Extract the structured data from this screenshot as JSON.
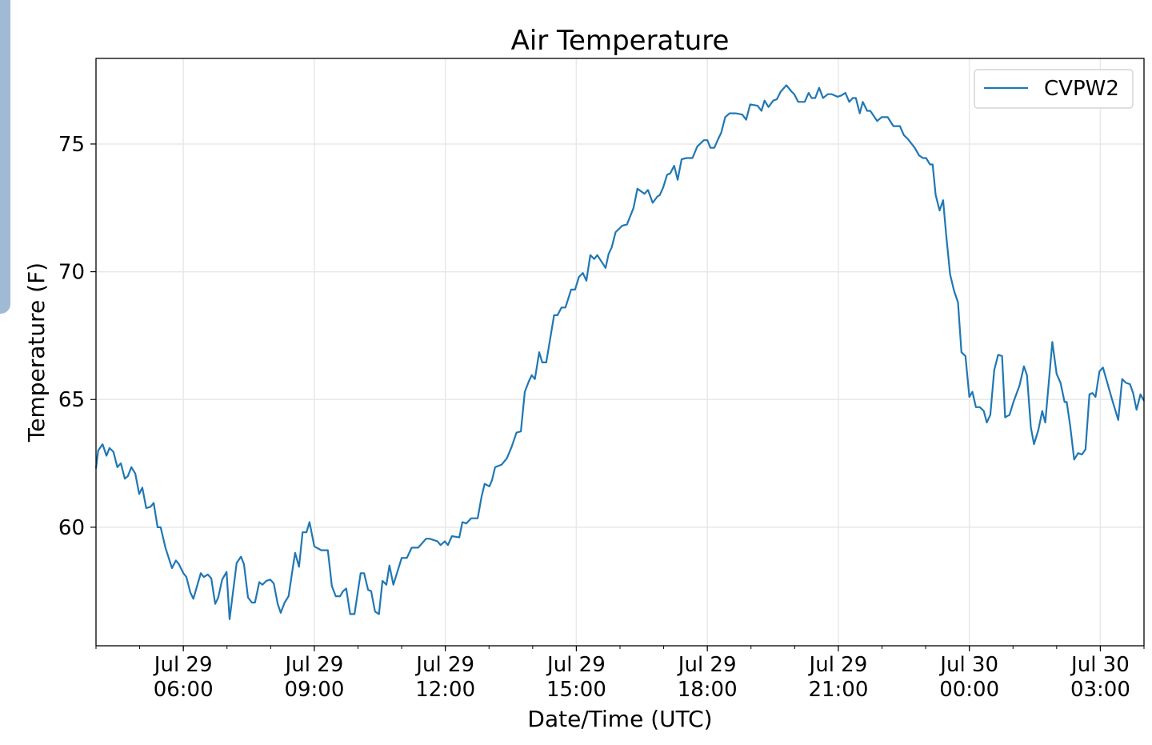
{
  "chart_data": {
    "type": "line",
    "title": "Air Temperature",
    "xlabel": "Date/Time (UTC)",
    "ylabel": "Temperature (F)",
    "x_units": "hours since Jul 29 00:00 UTC",
    "xlim": [
      4,
      28
    ],
    "ylim": [
      55.36,
      78.35
    ],
    "grid": true,
    "legend_position": "top-right",
    "yticks": [
      60,
      65,
      70,
      75
    ],
    "xticks": [
      {
        "value": 6,
        "date": "Jul 29",
        "time": "06:00"
      },
      {
        "value": 9,
        "date": "Jul 29",
        "time": "09:00"
      },
      {
        "value": 12,
        "date": "Jul 29",
        "time": "12:00"
      },
      {
        "value": 15,
        "date": "Jul 29",
        "time": "15:00"
      },
      {
        "value": 18,
        "date": "Jul 29",
        "time": "18:00"
      },
      {
        "value": 21,
        "date": "Jul 29",
        "time": "21:00"
      },
      {
        "value": 24,
        "date": "Jul 30",
        "time": "00:00"
      },
      {
        "value": 27,
        "date": "Jul 30",
        "time": "03:00"
      }
    ],
    "series": [
      {
        "name": "CVPW2",
        "color": "#1f77b4",
        "points": [
          [
            4.0,
            62.3
          ],
          [
            4.05,
            63.0
          ],
          [
            4.15,
            63.25
          ],
          [
            4.24,
            62.8
          ],
          [
            4.31,
            63.1
          ],
          [
            4.4,
            62.95
          ],
          [
            4.49,
            62.35
          ],
          [
            4.57,
            62.5
          ],
          [
            4.66,
            61.9
          ],
          [
            4.73,
            62.0
          ],
          [
            4.81,
            62.35
          ],
          [
            4.9,
            62.1
          ],
          [
            4.99,
            61.3
          ],
          [
            5.06,
            61.55
          ],
          [
            5.15,
            60.75
          ],
          [
            5.25,
            60.8
          ],
          [
            5.32,
            60.95
          ],
          [
            5.41,
            60.0
          ],
          [
            5.48,
            60.0
          ],
          [
            5.59,
            59.2
          ],
          [
            5.74,
            58.4
          ],
          [
            5.83,
            58.7
          ],
          [
            5.9,
            58.55
          ],
          [
            6.0,
            58.2
          ],
          [
            6.07,
            58.05
          ],
          [
            6.16,
            57.45
          ],
          [
            6.23,
            57.2
          ],
          [
            6.4,
            58.2
          ],
          [
            6.47,
            58.05
          ],
          [
            6.56,
            58.15
          ],
          [
            6.64,
            58.0
          ],
          [
            6.73,
            57.0
          ],
          [
            6.8,
            57.25
          ],
          [
            6.89,
            57.95
          ],
          [
            6.99,
            58.25
          ],
          [
            7.06,
            56.4
          ],
          [
            7.22,
            58.6
          ],
          [
            7.32,
            58.85
          ],
          [
            7.39,
            58.55
          ],
          [
            7.48,
            57.25
          ],
          [
            7.57,
            57.05
          ],
          [
            7.64,
            57.05
          ],
          [
            7.74,
            57.85
          ],
          [
            7.81,
            57.75
          ],
          [
            7.9,
            57.9
          ],
          [
            7.99,
            57.95
          ],
          [
            8.07,
            57.8
          ],
          [
            8.16,
            57.0
          ],
          [
            8.23,
            56.65
          ],
          [
            8.32,
            57.05
          ],
          [
            8.41,
            57.3
          ],
          [
            8.51,
            58.45
          ],
          [
            8.56,
            59.0
          ],
          [
            8.65,
            58.45
          ],
          [
            8.73,
            59.8
          ],
          [
            8.82,
            59.8
          ],
          [
            8.89,
            60.2
          ],
          [
            9.0,
            59.25
          ],
          [
            9.16,
            59.1
          ],
          [
            9.31,
            59.1
          ],
          [
            9.4,
            57.7
          ],
          [
            9.49,
            57.3
          ],
          [
            9.59,
            57.3
          ],
          [
            9.66,
            57.5
          ],
          [
            9.73,
            57.6
          ],
          [
            9.82,
            56.6
          ],
          [
            9.92,
            56.6
          ],
          [
            10.06,
            58.2
          ],
          [
            10.14,
            58.2
          ],
          [
            10.23,
            57.55
          ],
          [
            10.3,
            57.5
          ],
          [
            10.39,
            56.7
          ],
          [
            10.48,
            56.6
          ],
          [
            10.56,
            57.9
          ],
          [
            10.65,
            57.75
          ],
          [
            10.72,
            58.5
          ],
          [
            10.81,
            57.75
          ],
          [
            11.0,
            58.8
          ],
          [
            11.12,
            58.8
          ],
          [
            11.23,
            59.2
          ],
          [
            11.38,
            59.2
          ],
          [
            11.56,
            59.55
          ],
          [
            11.64,
            59.55
          ],
          [
            11.82,
            59.45
          ],
          [
            11.89,
            59.3
          ],
          [
            11.99,
            59.45
          ],
          [
            12.06,
            59.3
          ],
          [
            12.15,
            59.65
          ],
          [
            12.32,
            59.6
          ],
          [
            12.39,
            60.2
          ],
          [
            12.48,
            60.15
          ],
          [
            12.59,
            60.35
          ],
          [
            12.74,
            60.35
          ],
          [
            12.83,
            61.2
          ],
          [
            12.9,
            61.7
          ],
          [
            13.01,
            61.6
          ],
          [
            13.07,
            61.85
          ],
          [
            13.14,
            62.35
          ],
          [
            13.29,
            62.45
          ],
          [
            13.41,
            62.7
          ],
          [
            13.52,
            63.15
          ],
          [
            13.63,
            63.7
          ],
          [
            13.73,
            63.75
          ],
          [
            13.82,
            65.3
          ],
          [
            13.91,
            65.7
          ],
          [
            13.98,
            65.95
          ],
          [
            14.05,
            65.8
          ],
          [
            14.15,
            66.85
          ],
          [
            14.22,
            66.45
          ],
          [
            14.31,
            66.45
          ],
          [
            14.49,
            68.3
          ],
          [
            14.57,
            68.3
          ],
          [
            14.66,
            68.6
          ],
          [
            14.75,
            68.6
          ],
          [
            14.88,
            69.3
          ],
          [
            14.97,
            69.3
          ],
          [
            15.06,
            69.8
          ],
          [
            15.15,
            69.95
          ],
          [
            15.23,
            69.65
          ],
          [
            15.32,
            70.65
          ],
          [
            15.41,
            70.5
          ],
          [
            15.48,
            70.65
          ],
          [
            15.67,
            70.15
          ],
          [
            15.74,
            70.7
          ],
          [
            15.81,
            70.95
          ],
          [
            15.9,
            71.55
          ],
          [
            16.05,
            71.8
          ],
          [
            16.16,
            71.85
          ],
          [
            16.31,
            72.5
          ],
          [
            16.4,
            73.25
          ],
          [
            16.56,
            73.05
          ],
          [
            16.64,
            73.2
          ],
          [
            16.75,
            72.7
          ],
          [
            16.86,
            72.95
          ],
          [
            16.91,
            73.0
          ],
          [
            16.99,
            73.3
          ],
          [
            17.08,
            73.8
          ],
          [
            17.15,
            73.85
          ],
          [
            17.24,
            74.15
          ],
          [
            17.32,
            73.6
          ],
          [
            17.41,
            74.4
          ],
          [
            17.52,
            74.45
          ],
          [
            17.66,
            74.45
          ],
          [
            17.77,
            74.9
          ],
          [
            17.92,
            75.15
          ],
          [
            18.0,
            75.15
          ],
          [
            18.07,
            74.85
          ],
          [
            18.16,
            74.85
          ],
          [
            18.25,
            75.2
          ],
          [
            18.32,
            75.45
          ],
          [
            18.41,
            76.05
          ],
          [
            18.51,
            76.2
          ],
          [
            18.65,
            76.2
          ],
          [
            18.8,
            76.15
          ],
          [
            18.89,
            75.95
          ],
          [
            18.98,
            76.55
          ],
          [
            19.15,
            76.5
          ],
          [
            19.24,
            76.3
          ],
          [
            19.31,
            76.7
          ],
          [
            19.4,
            76.45
          ],
          [
            19.51,
            76.7
          ],
          [
            19.59,
            76.75
          ],
          [
            19.68,
            77.05
          ],
          [
            19.81,
            77.3
          ],
          [
            19.93,
            77.05
          ],
          [
            19.99,
            76.95
          ],
          [
            20.08,
            76.65
          ],
          [
            20.23,
            76.65
          ],
          [
            20.32,
            77.0
          ],
          [
            20.39,
            76.8
          ],
          [
            20.47,
            76.8
          ],
          [
            20.56,
            77.2
          ],
          [
            20.65,
            76.8
          ],
          [
            20.76,
            76.95
          ],
          [
            20.85,
            76.95
          ],
          [
            20.98,
            76.85
          ],
          [
            21.07,
            76.9
          ],
          [
            21.16,
            77.0
          ],
          [
            21.25,
            76.65
          ],
          [
            21.33,
            76.8
          ],
          [
            21.4,
            76.8
          ],
          [
            21.49,
            76.2
          ],
          [
            21.56,
            76.65
          ],
          [
            21.66,
            76.3
          ],
          [
            21.73,
            76.3
          ],
          [
            21.89,
            75.9
          ],
          [
            21.99,
            76.05
          ],
          [
            22.13,
            76.05
          ],
          [
            22.26,
            75.7
          ],
          [
            22.41,
            75.7
          ],
          [
            22.5,
            75.35
          ],
          [
            22.59,
            75.2
          ],
          [
            22.75,
            74.85
          ],
          [
            22.85,
            74.55
          ],
          [
            22.94,
            74.45
          ],
          [
            23.01,
            74.45
          ],
          [
            23.1,
            74.2
          ],
          [
            23.16,
            74.2
          ],
          [
            23.23,
            73.0
          ],
          [
            23.32,
            72.4
          ],
          [
            23.4,
            72.8
          ],
          [
            23.47,
            71.45
          ],
          [
            23.56,
            69.9
          ],
          [
            23.65,
            69.25
          ],
          [
            23.74,
            68.8
          ],
          [
            23.82,
            66.85
          ],
          [
            23.91,
            66.7
          ],
          [
            24.0,
            65.1
          ],
          [
            24.07,
            65.3
          ],
          [
            24.15,
            64.7
          ],
          [
            24.24,
            64.7
          ],
          [
            24.33,
            64.55
          ],
          [
            24.4,
            64.1
          ],
          [
            24.48,
            64.4
          ],
          [
            24.57,
            66.15
          ],
          [
            24.66,
            66.75
          ],
          [
            24.75,
            66.7
          ],
          [
            24.82,
            64.3
          ],
          [
            24.92,
            64.4
          ],
          [
            25.01,
            64.9
          ],
          [
            25.15,
            65.55
          ],
          [
            25.25,
            66.3
          ],
          [
            25.32,
            65.95
          ],
          [
            25.41,
            63.9
          ],
          [
            25.48,
            63.25
          ],
          [
            25.58,
            63.8
          ],
          [
            25.67,
            64.55
          ],
          [
            25.74,
            64.1
          ],
          [
            25.9,
            67.25
          ],
          [
            26.0,
            66.0
          ],
          [
            26.09,
            65.65
          ],
          [
            26.18,
            64.9
          ],
          [
            26.23,
            64.9
          ],
          [
            26.31,
            63.95
          ],
          [
            26.4,
            62.65
          ],
          [
            26.49,
            62.9
          ],
          [
            26.58,
            62.85
          ],
          [
            26.66,
            63.05
          ],
          [
            26.75,
            65.2
          ],
          [
            26.82,
            65.25
          ],
          [
            26.89,
            65.1
          ],
          [
            26.98,
            66.1
          ],
          [
            27.06,
            66.25
          ],
          [
            27.26,
            65.05
          ],
          [
            27.41,
            64.2
          ],
          [
            27.5,
            65.8
          ],
          [
            27.59,
            65.65
          ],
          [
            27.68,
            65.6
          ],
          [
            27.75,
            65.25
          ],
          [
            27.83,
            64.6
          ],
          [
            27.92,
            65.2
          ],
          [
            28.0,
            64.95
          ]
        ]
      }
    ]
  }
}
